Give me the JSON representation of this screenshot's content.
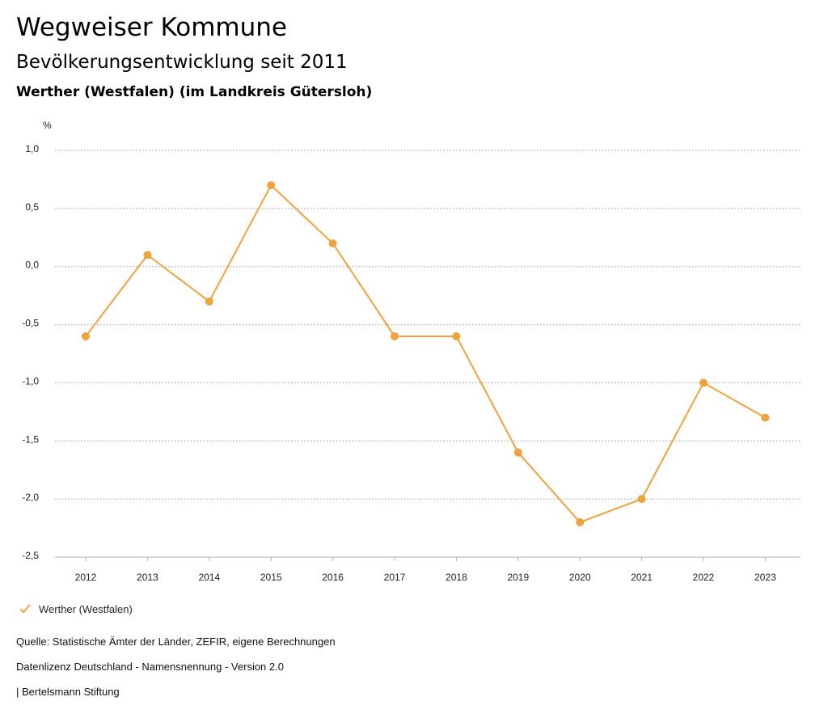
{
  "header": {
    "title": "Wegweiser Kommune",
    "subtitle": "Bevölkerungsentwicklung seit 2011",
    "place": "Werther (Westfalen) (im Landkreis Gütersloh)"
  },
  "chart_data": {
    "type": "line",
    "ylabel": "%",
    "ylim": [
      -2.5,
      1.0
    ],
    "yticks": [
      1.0,
      0.5,
      0.0,
      -0.5,
      -1.0,
      -1.5,
      -2.0,
      -2.5
    ],
    "ytick_labels": [
      "1,0",
      "0,5",
      "0,0",
      "-0,5",
      "-1,0",
      "-1,5",
      "-2,0",
      "-2,5"
    ],
    "categories": [
      "2012",
      "2013",
      "2014",
      "2015",
      "2016",
      "2017",
      "2018",
      "2019",
      "2020",
      "2021",
      "2022",
      "2023"
    ],
    "series": [
      {
        "name": "Werther (Westfalen)",
        "color": "#f0a23c",
        "values": [
          -0.6,
          0.1,
          -0.3,
          0.7,
          0.2,
          -0.6,
          -0.6,
          -1.6,
          -2.2,
          -2.0,
          -1.0,
          -1.3
        ]
      }
    ],
    "grid": "horizontal-dotted",
    "legend": "bottom-left"
  },
  "footer": {
    "source": "Quelle: Statistische Ämter der Länder, ZEFIR, eigene Berechnungen",
    "license": "Datenlizenz Deutschland - Namensnennung - Version 2.0",
    "publisher": "| Bertelsmann Stiftung"
  }
}
